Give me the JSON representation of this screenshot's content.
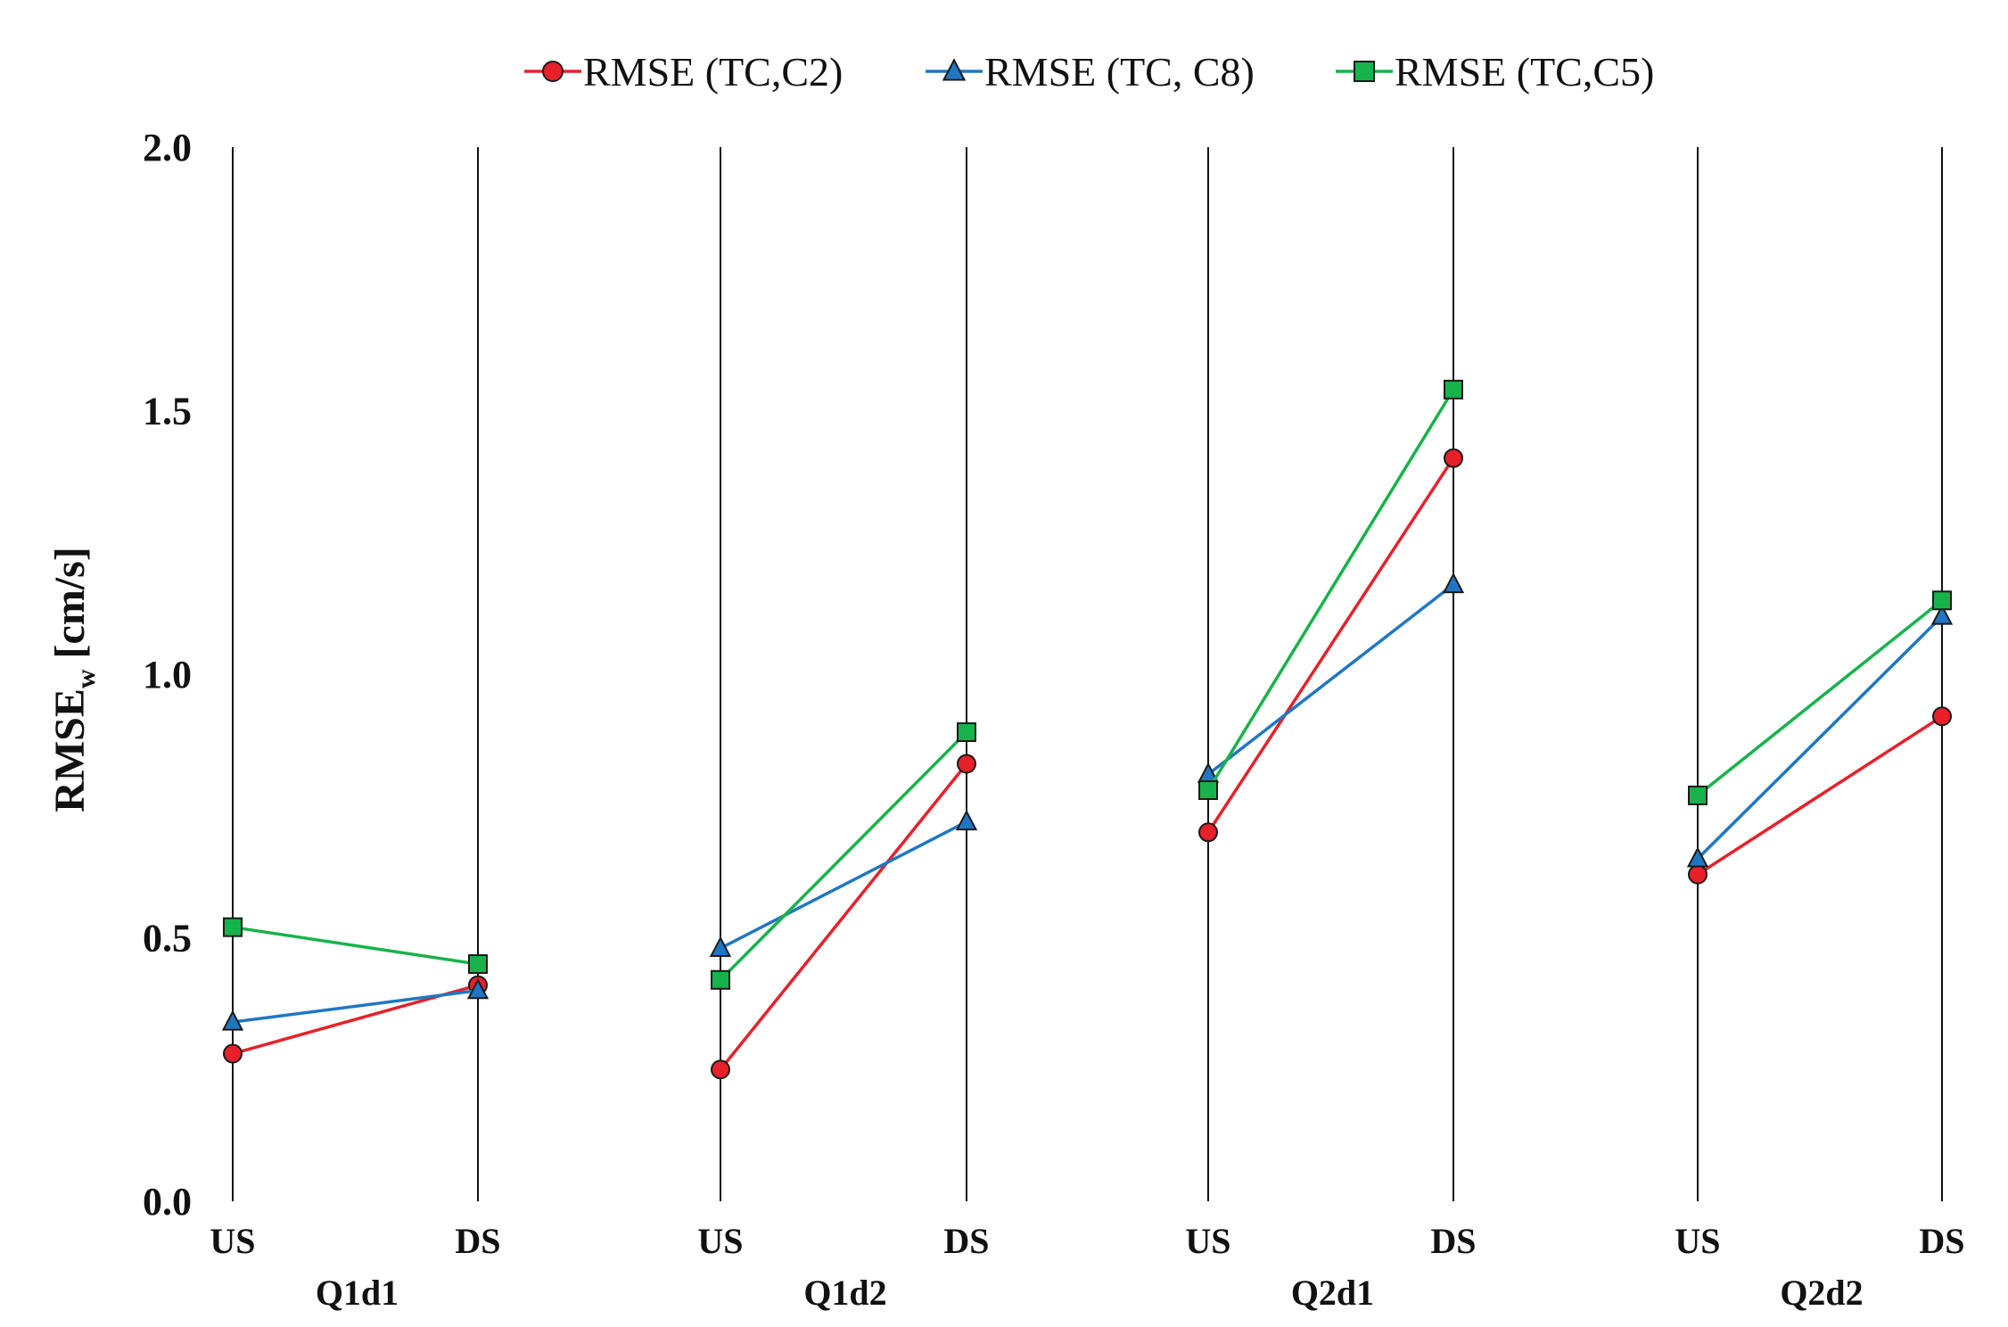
{
  "chart_data": {
    "type": "line",
    "title": "",
    "ylabel": "RMSE",
    "ylabel_subscript": "w",
    "ylabel_unit": "[cm/s]",
    "ylim": [
      0.0,
      2.0
    ],
    "yticks": [
      "0.0",
      "0.5",
      "1.0",
      "1.5",
      "2.0"
    ],
    "ytick_values": [
      0.0,
      0.5,
      1.0,
      1.5,
      2.0
    ],
    "legend_position": "top",
    "groups": [
      {
        "label": "Q1d1",
        "categories": [
          "US",
          "DS"
        ]
      },
      {
        "label": "Q1d2",
        "categories": [
          "US",
          "DS"
        ]
      },
      {
        "label": "Q2d1",
        "categories": [
          "US",
          "DS"
        ]
      },
      {
        "label": "Q2d2",
        "categories": [
          "US",
          "DS"
        ]
      }
    ],
    "series": [
      {
        "name": "RMSE (TC,C2)",
        "color": "#e8202a",
        "marker": "circle",
        "values": [
          [
            0.28,
            0.41
          ],
          [
            0.25,
            0.83
          ],
          [
            0.7,
            1.41
          ],
          [
            0.62,
            0.92
          ]
        ]
      },
      {
        "name": "RMSE (TC, C8)",
        "color": "#1f77c4",
        "marker": "triangle",
        "values": [
          [
            0.34,
            0.4
          ],
          [
            0.48,
            0.72
          ],
          [
            0.81,
            1.17
          ],
          [
            0.65,
            1.11
          ]
        ]
      },
      {
        "name": "RMSE (TC,C5)",
        "color": "#16b34a",
        "marker": "square",
        "values": [
          [
            0.52,
            0.45
          ],
          [
            0.42,
            0.89
          ],
          [
            0.78,
            1.54
          ],
          [
            0.77,
            1.14
          ]
        ]
      }
    ]
  }
}
